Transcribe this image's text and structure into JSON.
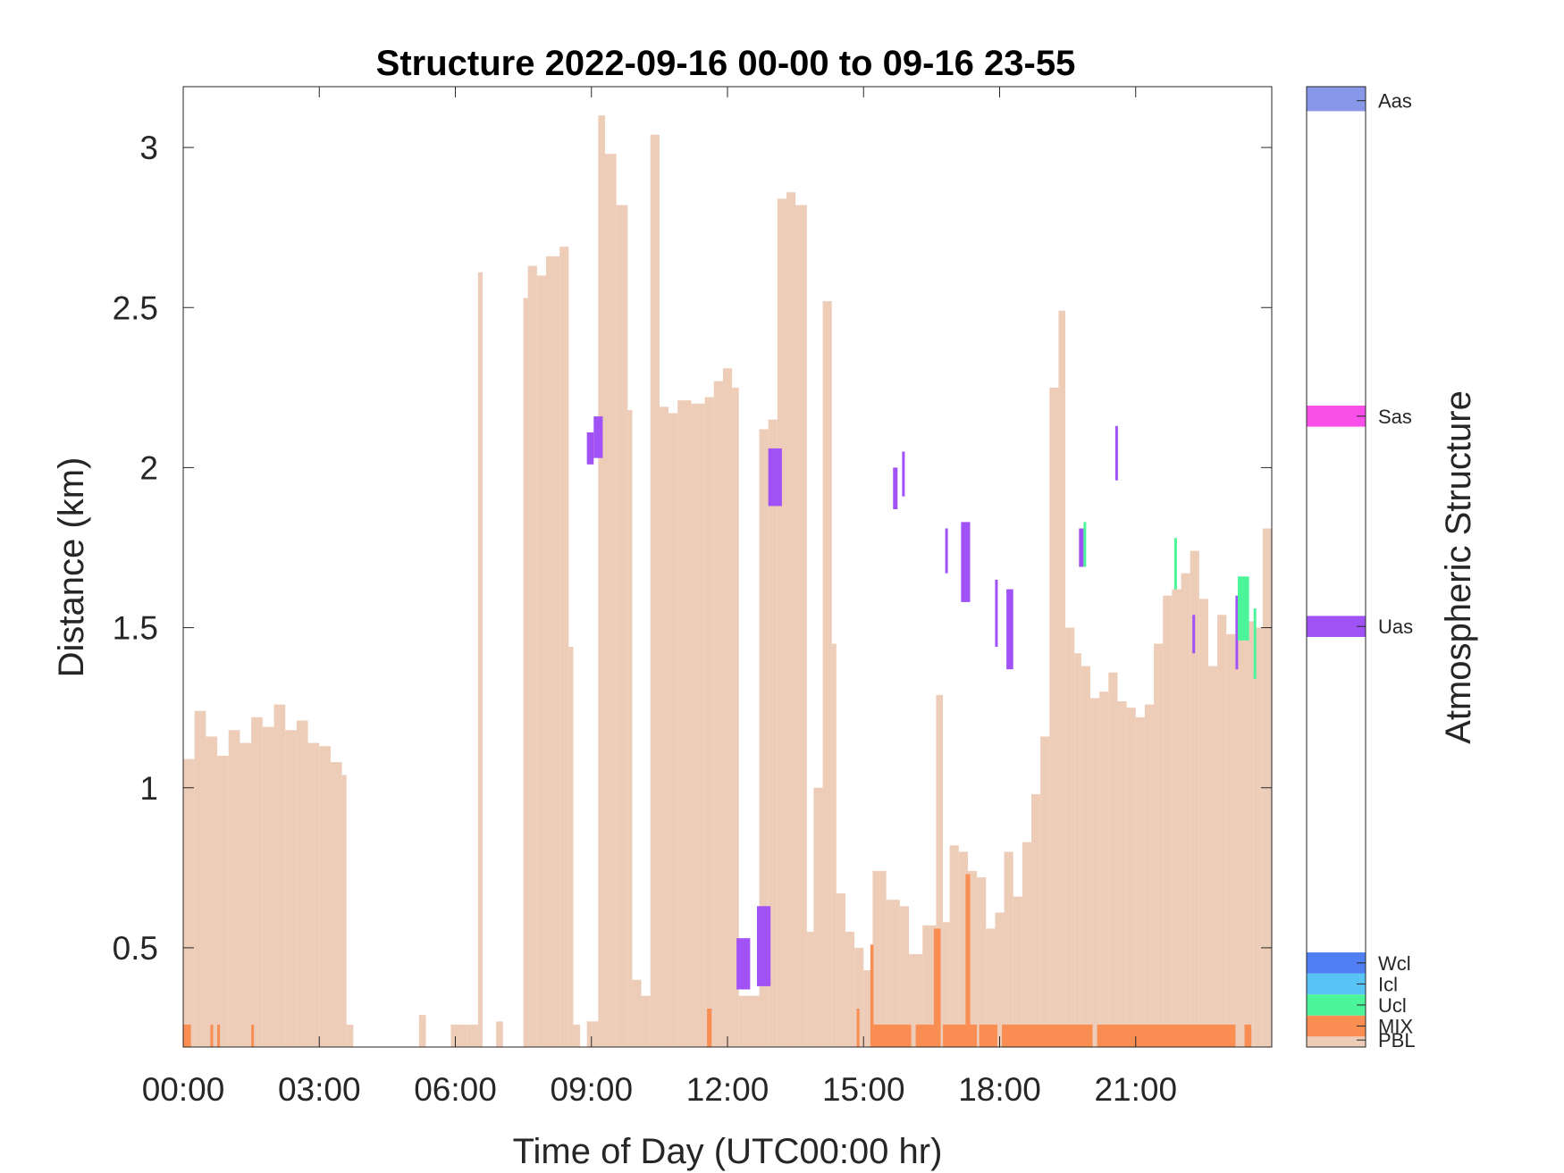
{
  "colors": {
    "PBL": "#EDCCB8",
    "MIX": "#F98D52",
    "Ucl": "#4CF59A",
    "Icl": "#59C3F5",
    "Wcl": "#4F7FF2",
    "Uas": "#A052F6",
    "Sas": "#F84FE8",
    "Aas": "#8897E7",
    "axis": "#262626"
  },
  "chart_data": {
    "type": "heatmap",
    "title": "Structure 2022-09-16 00-00 to 09-16 23-55",
    "xlabel": "Time of Day (UTC00:00 hr)",
    "ylabel": "Distance (km)",
    "colorbar_label": "Atmospheric Structure",
    "xlim": [
      0,
      24
    ],
    "ylim": [
      0.19,
      3.19
    ],
    "xticks": [
      0,
      3,
      6,
      9,
      12,
      15,
      18,
      21
    ],
    "xtick_labels": [
      "00:00",
      "03:00",
      "06:00",
      "09:00",
      "12:00",
      "15:00",
      "18:00",
      "21:00"
    ],
    "yticks": [
      0.5,
      1,
      1.5,
      2,
      2.5,
      3
    ],
    "ytick_labels": [
      "0.5",
      "1",
      "1.5",
      "2",
      "2.5",
      "3"
    ],
    "colorbar_categories": [
      "PBL",
      "MIX",
      "Ucl",
      "Icl",
      "Wcl",
      "Uas",
      "Sas",
      "Aas"
    ],
    "pbl_top_km": [
      [
        0.0,
        1.09
      ],
      [
        0.25,
        1.24
      ],
      [
        0.5,
        1.16
      ],
      [
        0.75,
        1.1
      ],
      [
        1.0,
        1.18
      ],
      [
        1.25,
        1.14
      ],
      [
        1.5,
        1.22
      ],
      [
        1.75,
        1.19
      ],
      [
        2.0,
        1.26
      ],
      [
        2.25,
        1.18
      ],
      [
        2.5,
        1.21
      ],
      [
        2.75,
        1.14
      ],
      [
        3.0,
        1.13
      ],
      [
        3.25,
        1.08
      ],
      [
        3.5,
        1.04
      ],
      [
        3.6,
        0.26
      ],
      [
        3.75,
        0.0
      ],
      [
        5.2,
        0.29
      ],
      [
        5.35,
        0.0
      ],
      [
        5.9,
        0.26
      ],
      [
        6.25,
        0.26
      ],
      [
        6.5,
        2.61
      ],
      [
        6.6,
        0.0
      ],
      [
        6.9,
        0.27
      ],
      [
        7.05,
        0.0
      ],
      [
        7.5,
        2.53
      ],
      [
        7.6,
        2.63
      ],
      [
        7.8,
        2.6
      ],
      [
        8.0,
        2.66
      ],
      [
        8.3,
        2.69
      ],
      [
        8.5,
        1.44
      ],
      [
        8.6,
        0.26
      ],
      [
        8.75,
        0.0
      ],
      [
        8.9,
        0.27
      ],
      [
        9.15,
        3.1
      ],
      [
        9.3,
        2.98
      ],
      [
        9.55,
        2.82
      ],
      [
        9.8,
        2.18
      ],
      [
        9.9,
        0.4
      ],
      [
        10.1,
        0.35
      ],
      [
        10.3,
        3.04
      ],
      [
        10.5,
        2.19
      ],
      [
        10.7,
        2.17
      ],
      [
        10.9,
        2.21
      ],
      [
        11.2,
        2.2
      ],
      [
        11.5,
        2.22
      ],
      [
        11.7,
        2.27
      ],
      [
        11.9,
        2.31
      ],
      [
        12.1,
        2.25
      ],
      [
        12.25,
        0.35
      ],
      [
        12.7,
        2.12
      ],
      [
        12.9,
        2.15
      ],
      [
        13.1,
        2.84
      ],
      [
        13.3,
        2.86
      ],
      [
        13.5,
        2.82
      ],
      [
        13.75,
        0.55
      ],
      [
        13.9,
        1.0
      ],
      [
        14.1,
        2.52
      ],
      [
        14.3,
        1.45
      ],
      [
        14.4,
        0.67
      ],
      [
        14.6,
        0.55
      ],
      [
        14.8,
        0.5
      ],
      [
        15.0,
        0.43
      ],
      [
        15.2,
        0.74
      ],
      [
        15.5,
        0.65
      ],
      [
        15.8,
        0.63
      ],
      [
        16.0,
        0.48
      ],
      [
        16.3,
        0.57
      ],
      [
        16.6,
        1.29
      ],
      [
        16.75,
        0.58
      ],
      [
        16.9,
        0.82
      ],
      [
        17.1,
        0.8
      ],
      [
        17.3,
        0.74
      ],
      [
        17.5,
        0.72
      ],
      [
        17.7,
        0.56
      ],
      [
        17.9,
        0.61
      ],
      [
        18.1,
        0.8
      ],
      [
        18.3,
        0.66
      ],
      [
        18.5,
        0.83
      ],
      [
        18.7,
        0.98
      ],
      [
        18.9,
        1.16
      ],
      [
        19.1,
        2.25
      ],
      [
        19.3,
        2.49
      ],
      [
        19.45,
        1.5
      ],
      [
        19.65,
        1.42
      ],
      [
        19.8,
        1.38
      ],
      [
        20.0,
        1.28
      ],
      [
        20.2,
        1.3
      ],
      [
        20.4,
        1.36
      ],
      [
        20.6,
        1.27
      ],
      [
        20.8,
        1.25
      ],
      [
        21.0,
        1.22
      ],
      [
        21.2,
        1.26
      ],
      [
        21.4,
        1.45
      ],
      [
        21.6,
        1.6
      ],
      [
        21.8,
        1.62
      ],
      [
        22.0,
        1.67
      ],
      [
        22.2,
        1.74
      ],
      [
        22.4,
        1.59
      ],
      [
        22.6,
        1.38
      ],
      [
        22.8,
        1.54
      ],
      [
        23.0,
        1.48
      ],
      [
        23.2,
        1.56
      ],
      [
        23.4,
        1.52
      ],
      [
        23.6,
        1.5
      ],
      [
        23.8,
        1.81
      ],
      [
        24.0,
        1.73
      ]
    ],
    "mix_segments": [
      {
        "t0": 0.0,
        "t1": 0.17,
        "top": 0.26
      },
      {
        "t0": 0.6,
        "t1": 0.65,
        "top": 0.26
      },
      {
        "t0": 0.75,
        "t1": 0.8,
        "top": 0.26
      },
      {
        "t0": 1.5,
        "t1": 1.55,
        "top": 0.26
      },
      {
        "t0": 11.55,
        "t1": 11.65,
        "top": 0.31
      },
      {
        "t0": 14.85,
        "t1": 14.9,
        "top": 0.31
      },
      {
        "t0": 15.15,
        "t1": 15.22,
        "top": 0.51
      },
      {
        "t0": 15.22,
        "t1": 16.05,
        "top": 0.26
      },
      {
        "t0": 16.15,
        "t1": 16.55,
        "top": 0.26
      },
      {
        "t0": 16.55,
        "t1": 16.7,
        "top": 0.56
      },
      {
        "t0": 16.75,
        "t1": 17.5,
        "top": 0.26
      },
      {
        "t0": 17.25,
        "t1": 17.35,
        "top": 0.73
      },
      {
        "t0": 17.55,
        "t1": 17.95,
        "top": 0.26
      },
      {
        "t0": 18.05,
        "t1": 20.05,
        "top": 0.26
      },
      {
        "t0": 20.15,
        "t1": 23.2,
        "top": 0.26
      },
      {
        "t0": 23.4,
        "t1": 23.55,
        "top": 0.26
      }
    ],
    "uas_blocks": [
      {
        "t0": 8.9,
        "t1": 9.05,
        "y0": 2.01,
        "y1": 2.11
      },
      {
        "t0": 9.05,
        "t1": 9.25,
        "y0": 2.03,
        "y1": 2.16
      },
      {
        "t0": 12.2,
        "t1": 12.5,
        "y0": 0.37,
        "y1": 0.53
      },
      {
        "t0": 12.65,
        "t1": 12.95,
        "y0": 0.38,
        "y1": 0.63
      },
      {
        "t0": 12.9,
        "t1": 13.2,
        "y0": 1.88,
        "y1": 2.06
      },
      {
        "t0": 15.65,
        "t1": 15.75,
        "y0": 1.87,
        "y1": 2.0
      },
      {
        "t0": 15.85,
        "t1": 15.9,
        "y0": 1.91,
        "y1": 2.05
      },
      {
        "t0": 16.8,
        "t1": 16.85,
        "y0": 1.67,
        "y1": 1.81
      },
      {
        "t0": 17.15,
        "t1": 17.35,
        "y0": 1.58,
        "y1": 1.83
      },
      {
        "t0": 17.9,
        "t1": 17.95,
        "y0": 1.44,
        "y1": 1.65
      },
      {
        "t0": 18.15,
        "t1": 18.3,
        "y0": 1.37,
        "y1": 1.62
      },
      {
        "t0": 19.75,
        "t1": 19.85,
        "y0": 1.69,
        "y1": 1.81
      },
      {
        "t0": 20.55,
        "t1": 20.6,
        "y0": 1.96,
        "y1": 2.13
      },
      {
        "t0": 22.25,
        "t1": 22.3,
        "y0": 1.42,
        "y1": 1.54
      },
      {
        "t0": 23.2,
        "t1": 23.25,
        "y0": 1.37,
        "y1": 1.6
      }
    ],
    "ucl_blocks": [
      {
        "t0": 19.85,
        "t1": 19.9,
        "y0": 1.69,
        "y1": 1.83
      },
      {
        "t0": 21.85,
        "t1": 21.9,
        "y0": 1.62,
        "y1": 1.78
      },
      {
        "t0": 23.25,
        "t1": 23.5,
        "y0": 1.46,
        "y1": 1.66
      },
      {
        "t0": 23.6,
        "t1": 23.65,
        "y0": 1.34,
        "y1": 1.56
      }
    ]
  }
}
